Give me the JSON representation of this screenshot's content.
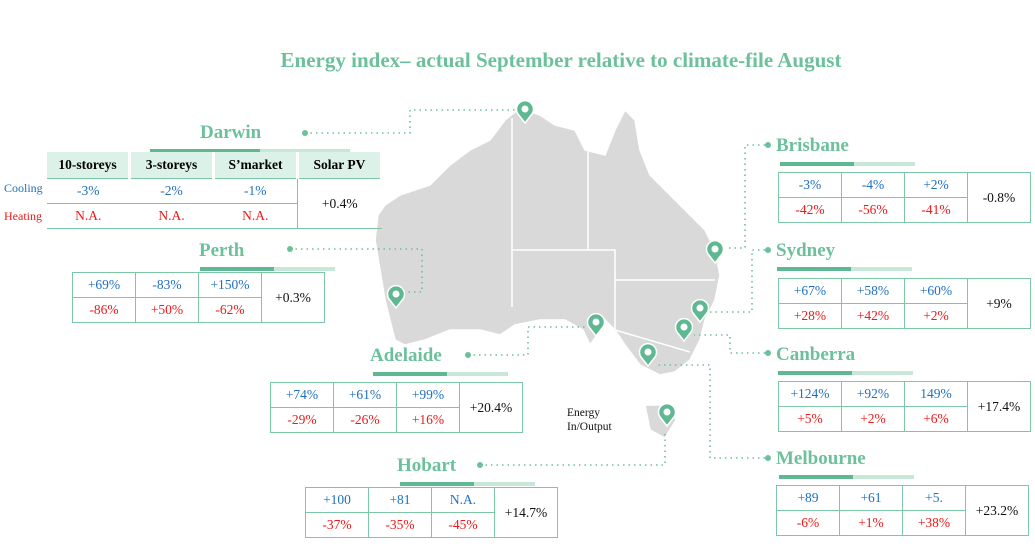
{
  "title": "Energy index– actual September relative to climate-file August",
  "colors": {
    "accent": "#6cc19b",
    "cooling": "#1f6fc0",
    "heating": "#f01818",
    "map": "#d9d9d9"
  },
  "row_labels": {
    "cooling": "Cooling",
    "heating": "Heating"
  },
  "columns": [
    "10-storeys",
    "3-storeys",
    "S’market",
    "Solar PV"
  ],
  "legend_note": [
    "Energy",
    "In/Output"
  ],
  "cities": [
    {
      "name": "Darwin",
      "cooling": [
        "-3%",
        "-2%",
        "-1%"
      ],
      "heating": [
        "N.A.",
        "N.A.",
        "N.A."
      ],
      "solar": "+0.4%"
    },
    {
      "name": "Perth",
      "cooling": [
        "+69%",
        "-83%",
        "+150%"
      ],
      "heating": [
        "-86%",
        "+50%",
        "-62%"
      ],
      "solar": "+0.3%"
    },
    {
      "name": "Adelaide",
      "cooling": [
        "+74%",
        "+61%",
        "+99%"
      ],
      "heating": [
        "-29%",
        "-26%",
        "+16%"
      ],
      "solar": "+20.4%"
    },
    {
      "name": "Hobart",
      "cooling": [
        "+100",
        "+81",
        "N.A."
      ],
      "heating": [
        "-37%",
        "-35%",
        "-45%"
      ],
      "solar": "+14.7%"
    },
    {
      "name": "Brisbane",
      "cooling": [
        "-3%",
        "-4%",
        "+2%"
      ],
      "heating": [
        "-42%",
        "-56%",
        "-41%"
      ],
      "solar": "-0.8%"
    },
    {
      "name": "Sydney",
      "cooling": [
        "+67%",
        "+58%",
        "+60%"
      ],
      "heating": [
        "+28%",
        "+42%",
        "+2%"
      ],
      "solar": "+9%"
    },
    {
      "name": "Canberra",
      "cooling": [
        "+124%",
        "+92%",
        "149%"
      ],
      "heating": [
        "+5%",
        "+2%",
        "+6%"
      ],
      "solar": "+17.4%"
    },
    {
      "name": "Melbourne",
      "cooling": [
        "+89",
        "+61",
        "+5."
      ],
      "heating": [
        "-6%",
        "+1%",
        "+38%"
      ],
      "solar": "+23.2%"
    }
  ]
}
